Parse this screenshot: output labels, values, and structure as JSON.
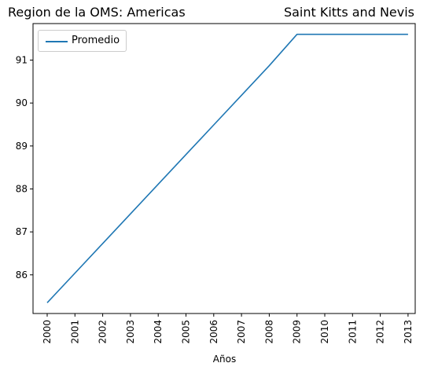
{
  "chart_data": {
    "type": "line",
    "title_left": "Region de la OMS: Americas",
    "title_right": "Saint Kitts and Nevis",
    "xlabel": "Años",
    "ylabel": "",
    "x": [
      "2000",
      "2001",
      "2002",
      "2003",
      "2004",
      "2005",
      "2006",
      "2007",
      "2008",
      "2009",
      "2010",
      "2011",
      "2012",
      "2013"
    ],
    "series": [
      {
        "name": "Promedio",
        "values": [
          85.35,
          86.04,
          86.73,
          87.42,
          88.11,
          88.8,
          89.49,
          90.18,
          90.87,
          91.6,
          91.6,
          91.6,
          91.6,
          91.6
        ]
      }
    ],
    "yticks": [
      86,
      87,
      88,
      89,
      90,
      91
    ],
    "ylim": [
      85.1,
      91.85
    ],
    "legend": "upper left",
    "grid": false,
    "line_color": "#1f77b4"
  }
}
